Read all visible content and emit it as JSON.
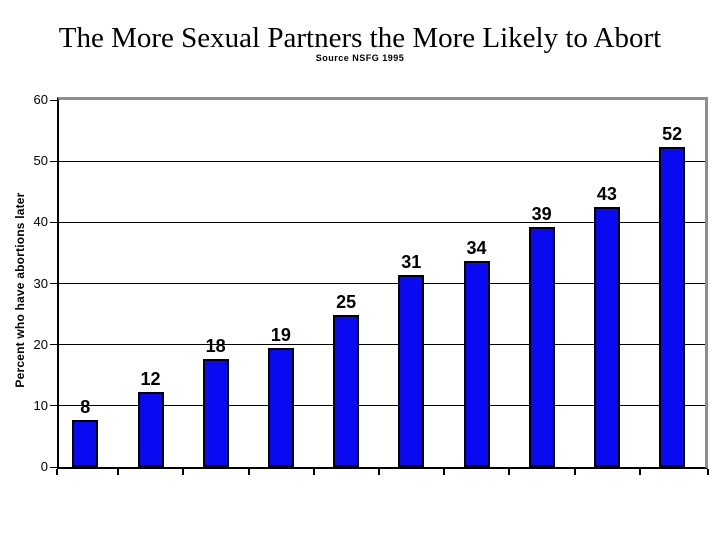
{
  "window": {
    "background": "#ffffff"
  },
  "header": {
    "title": "The More Sexual Partners the More Likely to Abort",
    "subtitle": "Source NSFG 1995"
  },
  "chart_data": {
    "type": "bar",
    "title": "The More Sexual Partners the More Likely to Abort",
    "subtitle": "Source NSFG 1995",
    "xlabel": "",
    "ylabel": "Percent who have abortions later",
    "ylim": [
      0,
      60
    ],
    "yticks": [
      0,
      10,
      20,
      30,
      40,
      50,
      60
    ],
    "grid": true,
    "legend": false,
    "num_bars": 10,
    "values": [
      8,
      12,
      18,
      19,
      25,
      31,
      34,
      39,
      43,
      52
    ],
    "data_labels": [
      "8",
      "12",
      "18",
      "19",
      "25",
      "31",
      "34",
      "39",
      "43",
      "52"
    ],
    "rendered_bar_heights": [
      7.7,
      12.2,
      17.6,
      19.4,
      24.8,
      31.4,
      33.7,
      39.3,
      42.5,
      52.3
    ],
    "colors": {
      "bar_fill": "#0a0af2",
      "bar_border": "#000000",
      "gridline": "#000000",
      "plot_frame": "#8e8e8e",
      "axis": "#000000",
      "text": "#000000",
      "background": "#ffffff"
    }
  }
}
